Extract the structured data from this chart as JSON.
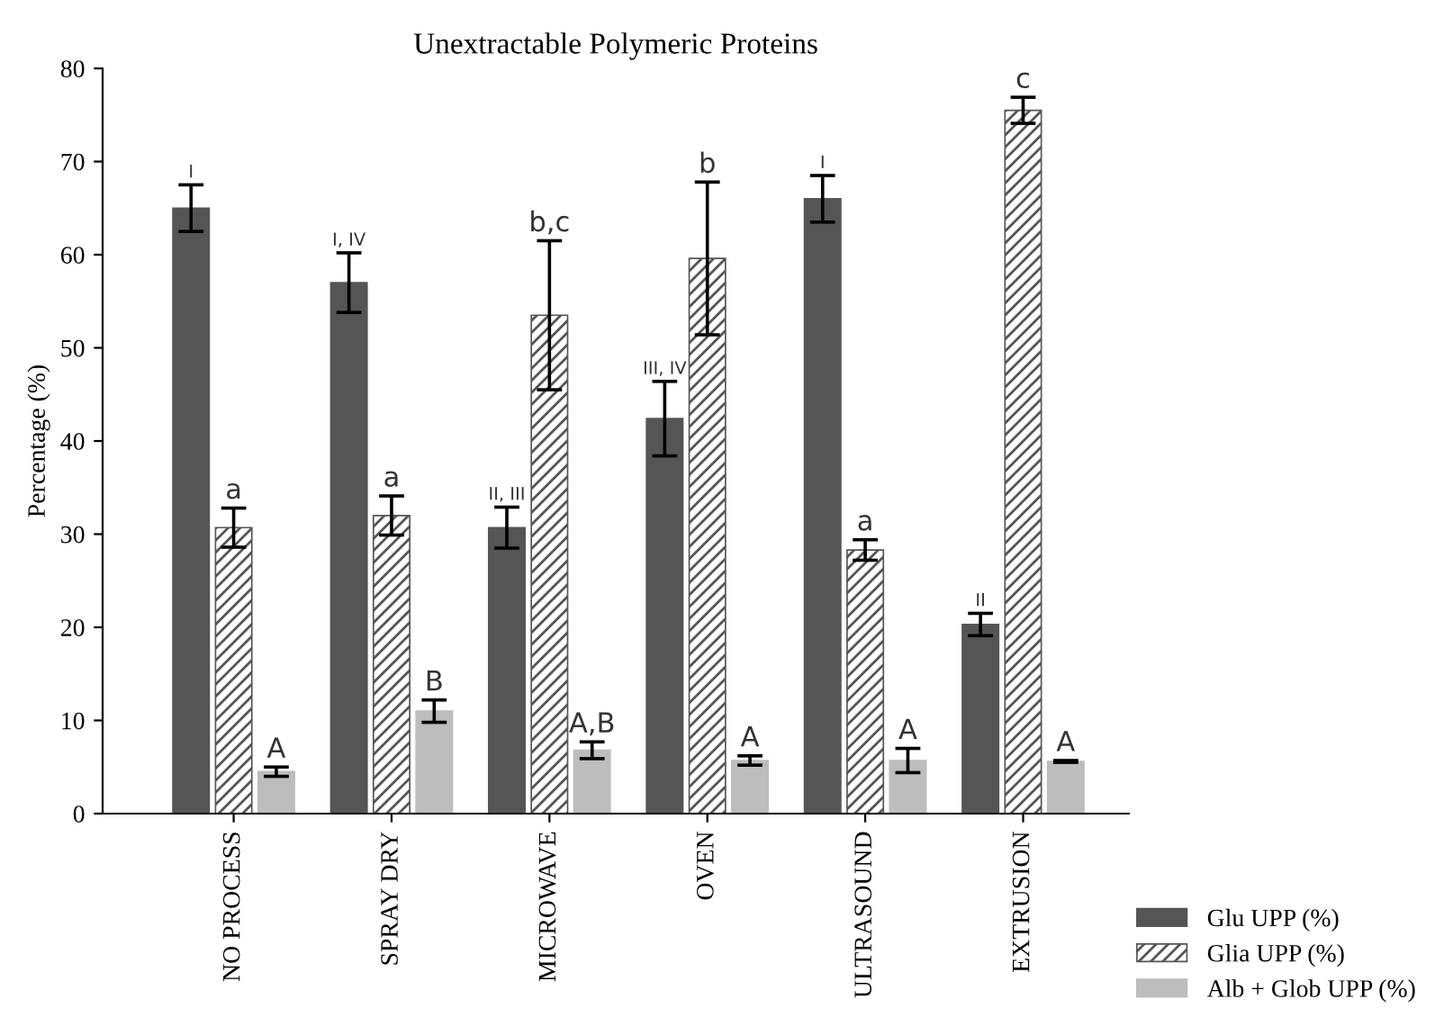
{
  "chart_data": {
    "type": "bar",
    "title": "Unextractable Polymeric Proteins",
    "ylabel": "Percentage (%)",
    "categories": [
      "NO PROCESS",
      "SPRAY DRY",
      "MICROWAVE",
      "OVEN",
      "ULTRASOUND",
      "EXTRUSION"
    ],
    "series": [
      {
        "name": "Glu UPP (%)",
        "color": "#555555",
        "values": [
          65,
          57,
          30.7,
          42.4,
          66,
          20.3
        ],
        "errors": [
          2.5,
          3.2,
          2.2,
          4,
          2.5,
          1.2
        ],
        "value_labels": [
          "I",
          "I, IV",
          "II, III",
          "III, IV",
          "I",
          "II"
        ]
      },
      {
        "name": "Glia UPP (%)",
        "color": "#555555",
        "values": [
          30.7,
          32,
          53.5,
          59.6,
          28.3,
          75.5
        ],
        "errors": [
          2.1,
          2.1,
          8,
          8.2,
          1.1,
          1.4
        ],
        "value_labels": [
          "a",
          "a",
          "b,c",
          "b",
          "a",
          "c"
        ]
      },
      {
        "name": "Alb + Glob UPP (%)",
        "color": "#bdbdbd",
        "values": [
          4.5,
          11,
          6.8,
          5.7,
          5.7,
          5.6
        ],
        "errors": [
          0.5,
          1.2,
          0.9,
          0.5,
          1.3,
          0.1
        ],
        "value_labels": [
          "A",
          "B",
          "A,B",
          "A",
          "A",
          "A"
        ]
      }
    ],
    "ylim": [
      0,
      80
    ],
    "yticks": [
      0,
      10,
      20,
      30,
      40,
      50,
      60,
      70,
      80
    ],
    "grid": false,
    "legend": "bottom right"
  }
}
